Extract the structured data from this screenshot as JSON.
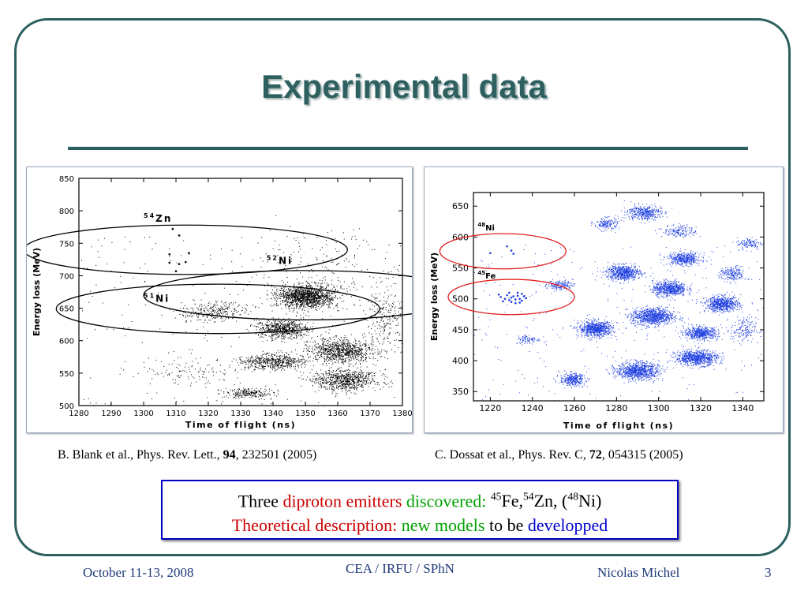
{
  "slide": {
    "title": "Experimental data",
    "footer": {
      "date": "October 11-13, 2008",
      "lab": "CEA / IRFU / SPhN",
      "author": "Nicolas Michel",
      "page": "3"
    }
  },
  "citations": {
    "left": {
      "pre": "B. Blank et al., Phys. Rev. Lett., ",
      "vol": "94",
      "post": ", 232501 (2005)"
    },
    "right": {
      "pre": "C. Dossat et al., Phys. Rev. C, ",
      "vol": "72",
      "post": ", 054315 (2005)"
    }
  },
  "summary": {
    "line1": {
      "w1": "Three",
      "w2": "diproton emitters",
      "w3": "discovered:",
      "fe_mass": "45",
      "fe": "Fe,",
      "zn_mass": "54",
      "zn": "Zn, (",
      "ni_mass": "48",
      "ni": "Ni)"
    },
    "line2": {
      "w1": "Theoretical description:",
      "w2": "new models",
      "w3": "to be",
      "w4": "developped"
    }
  },
  "chart_data": [
    {
      "type": "scatter",
      "xlabel": "Time of flight (ns)",
      "ylabel": "Energy loss (MeV)",
      "xlim": [
        1280,
        1380
      ],
      "ylim": [
        500,
        850
      ],
      "xticks": [
        1280,
        1290,
        1300,
        1310,
        1320,
        1330,
        1340,
        1350,
        1360,
        1370,
        1380
      ],
      "yticks": [
        500,
        550,
        600,
        650,
        700,
        750,
        800,
        850
      ],
      "point_color": "#000000",
      "clusters": [
        {
          "x": 1350,
          "y": 668,
          "sx": 4.5,
          "sy": 9,
          "n": 1400
        },
        {
          "x": 1343,
          "y": 618,
          "sx": 4,
          "sy": 7,
          "n": 650
        },
        {
          "x": 1361,
          "y": 585,
          "sx": 5,
          "sy": 9,
          "n": 900
        },
        {
          "x": 1340,
          "y": 568,
          "sx": 5,
          "sy": 6,
          "n": 550
        },
        {
          "x": 1362,
          "y": 540,
          "sx": 5,
          "sy": 8,
          "n": 750
        },
        {
          "x": 1322,
          "y": 645,
          "sx": 5,
          "sy": 8,
          "n": 280
        },
        {
          "x": 1332,
          "y": 520,
          "sx": 4,
          "sy": 4,
          "n": 230
        },
        {
          "x": 1375,
          "y": 640,
          "sx": 3,
          "sy": 25,
          "n": 220
        },
        {
          "x": 1315,
          "y": 555,
          "sx": 8,
          "sy": 10,
          "n": 110
        },
        {
          "x": 1355,
          "y": 720,
          "sx": 10,
          "sy": 30,
          "n": 140
        }
      ],
      "points": [
        {
          "x": 1309,
          "y": 772
        },
        {
          "x": 1311,
          "y": 762
        },
        {
          "x": 1308,
          "y": 733
        },
        {
          "x": 1314,
          "y": 735
        },
        {
          "x": 1308,
          "y": 720
        },
        {
          "x": 1311,
          "y": 718
        },
        {
          "x": 1313,
          "y": 721
        },
        {
          "x": 1310,
          "y": 707
        }
      ],
      "labels": [
        {
          "mass": "54",
          "symbol": "Zn",
          "x": 1300,
          "y": 783
        },
        {
          "mass": "51",
          "symbol": "Ni",
          "x": 1300,
          "y": 660
        },
        {
          "mass": "52",
          "symbol": "Ni",
          "x": 1338,
          "y": 718
        }
      ],
      "circles": [
        {
          "cx": 1313,
          "cy": 740,
          "rx": 10,
          "ry": 38
        },
        {
          "cx": 1323,
          "cy": 649,
          "rx": 10,
          "ry": 38
        },
        {
          "cx": 1350,
          "cy": 670,
          "rx": 10,
          "ry": 38
        }
      ]
    },
    {
      "type": "scatter",
      "xlabel": "Time of flight (ns)",
      "ylabel": "Energy loss (MeV)",
      "xlim": [
        1212,
        1350
      ],
      "ylim": [
        335,
        672
      ],
      "xticks": [
        1220,
        1240,
        1260,
        1280,
        1300,
        1320,
        1340
      ],
      "yticks": [
        350,
        400,
        450,
        500,
        550,
        600,
        650
      ],
      "point_color": "#1f3fe0",
      "clusters": [
        {
          "x": 1270,
          "y": 452,
          "sx": 4,
          "sy": 6,
          "n": 750
        },
        {
          "x": 1283,
          "y": 543,
          "sx": 4,
          "sy": 6,
          "n": 650
        },
        {
          "x": 1290,
          "y": 384,
          "sx": 5,
          "sy": 7,
          "n": 900
        },
        {
          "x": 1297,
          "y": 472,
          "sx": 5,
          "sy": 7,
          "n": 900
        },
        {
          "x": 1305,
          "y": 517,
          "sx": 4,
          "sy": 6,
          "n": 650
        },
        {
          "x": 1312,
          "y": 565,
          "sx": 4,
          "sy": 5,
          "n": 450
        },
        {
          "x": 1318,
          "y": 405,
          "sx": 5,
          "sy": 6,
          "n": 800
        },
        {
          "x": 1320,
          "y": 445,
          "sx": 4,
          "sy": 5,
          "n": 550
        },
        {
          "x": 1330,
          "y": 492,
          "sx": 4,
          "sy": 6,
          "n": 650
        },
        {
          "x": 1293,
          "y": 640,
          "sx": 4,
          "sy": 6,
          "n": 400
        },
        {
          "x": 1275,
          "y": 622,
          "sx": 3,
          "sy": 5,
          "n": 170
        },
        {
          "x": 1259,
          "y": 370,
          "sx": 3,
          "sy": 5,
          "n": 330
        },
        {
          "x": 1253,
          "y": 523,
          "sx": 3,
          "sy": 4,
          "n": 170
        },
        {
          "x": 1310,
          "y": 610,
          "sx": 4,
          "sy": 5,
          "n": 170
        },
        {
          "x": 1335,
          "y": 540,
          "sx": 3,
          "sy": 6,
          "n": 200
        },
        {
          "x": 1340,
          "y": 450,
          "sx": 3,
          "sy": 10,
          "n": 170
        },
        {
          "x": 1343,
          "y": 590,
          "sx": 3,
          "sy": 5,
          "n": 120
        },
        {
          "x": 1238,
          "y": 435,
          "sx": 3,
          "sy": 4,
          "n": 90
        }
      ],
      "points": [
        {
          "x": 1220,
          "y": 574
        },
        {
          "x": 1228,
          "y": 585
        },
        {
          "x": 1230,
          "y": 578
        },
        {
          "x": 1231,
          "y": 573
        },
        {
          "x": 1225,
          "y": 503
        },
        {
          "x": 1227,
          "y": 500
        },
        {
          "x": 1228,
          "y": 506
        },
        {
          "x": 1229,
          "y": 498
        },
        {
          "x": 1230,
          "y": 502
        },
        {
          "x": 1231,
          "y": 504
        },
        {
          "x": 1232,
          "y": 499
        },
        {
          "x": 1233,
          "y": 505
        },
        {
          "x": 1234,
          "y": 500
        },
        {
          "x": 1235,
          "y": 497
        },
        {
          "x": 1236,
          "y": 504
        },
        {
          "x": 1229,
          "y": 510
        },
        {
          "x": 1233,
          "y": 510
        },
        {
          "x": 1226,
          "y": 496
        },
        {
          "x": 1232,
          "y": 493
        },
        {
          "x": 1235,
          "y": 508
        },
        {
          "x": 1237,
          "y": 501
        },
        {
          "x": 1224,
          "y": 507
        },
        {
          "x": 1230,
          "y": 495
        },
        {
          "x": 1234,
          "y": 494
        }
      ],
      "labels": [
        {
          "mass": "48",
          "symbol": "Ni",
          "x": 1214,
          "y": 611
        },
        {
          "mass": "45",
          "symbol": "Fe",
          "x": 1214,
          "y": 533
        }
      ],
      "circles": [
        {
          "cx": 1226,
          "cy": 577,
          "rx": 10,
          "ry": 38
        },
        {
          "cx": 1230,
          "cy": 503,
          "rx": 10,
          "ry": 38
        }
      ]
    }
  ]
}
